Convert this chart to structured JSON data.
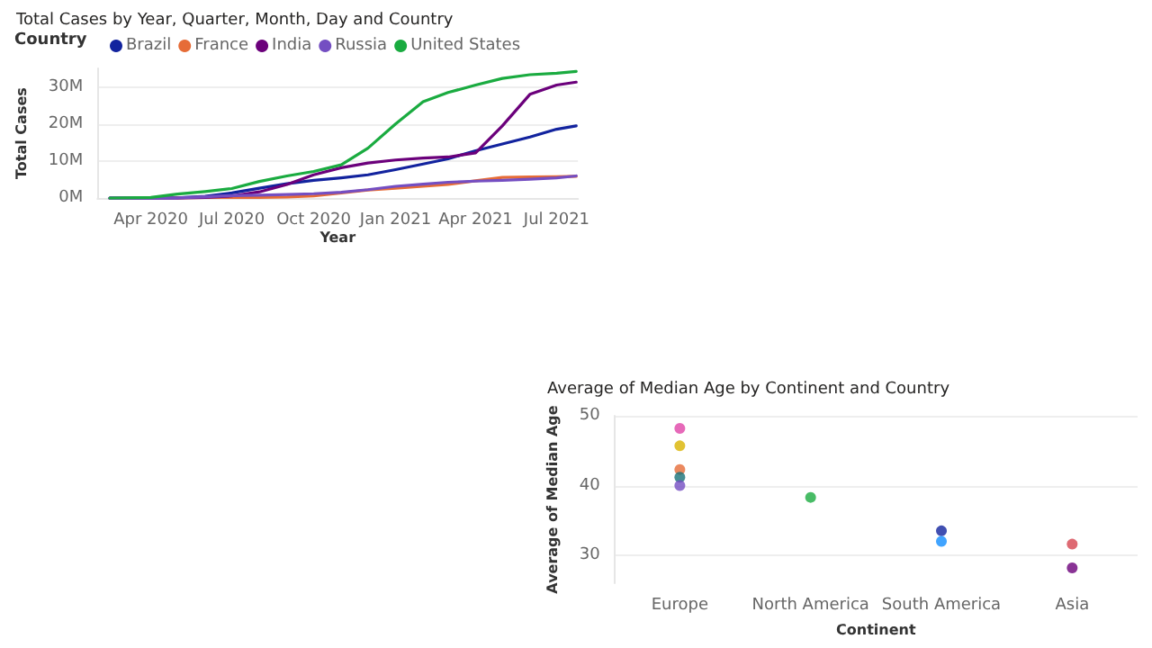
{
  "chart_data": [
    {
      "type": "line",
      "title": "Total Cases by Year, Quarter, Month, Day and Country",
      "xlabel": "Year",
      "ylabel": "Total Cases",
      "legend_title": "Country",
      "legend": "top left",
      "grid": "y",
      "marker": "none",
      "line_style": "solid",
      "x": [
        "2020-02-15",
        "2020-04-01",
        "2020-05-01",
        "2020-06-01",
        "2020-07-01",
        "2020-08-01",
        "2020-09-01",
        "2020-10-01",
        "2020-11-01",
        "2020-12-01",
        "2021-01-01",
        "2021-02-01",
        "2021-03-01",
        "2021-04-01",
        "2021-05-01",
        "2021-06-01",
        "2021-07-01",
        "2021-07-23"
      ],
      "xlim": [
        "2020-02-01",
        "2021-07-25"
      ],
      "xticks": [
        {
          "value": "2020-04-01",
          "label": "Apr 2020"
        },
        {
          "value": "2020-07-01",
          "label": "Jul 2020"
        },
        {
          "value": "2020-10-01",
          "label": "Oct 2020"
        },
        {
          "value": "2021-01-01",
          "label": "Jan 2021"
        },
        {
          "value": "2021-04-01",
          "label": "Apr 2021"
        },
        {
          "value": "2021-07-01",
          "label": "Jul 2021"
        }
      ],
      "ylim": [
        0,
        35
      ],
      "yticks": [
        {
          "value": 0,
          "label": "0M"
        },
        {
          "value": 10,
          "label": "10M"
        },
        {
          "value": 20,
          "label": "20M"
        },
        {
          "value": 30,
          "label": "30M"
        }
      ],
      "series": [
        {
          "name": "Brazil",
          "color": "#12239e",
          "values": [
            0,
            0,
            0.1,
            0.5,
            1.4,
            2.7,
            3.9,
            4.8,
            5.5,
            6.3,
            7.7,
            9.2,
            10.6,
            12.8,
            14.6,
            16.5,
            18.6,
            19.5
          ]
        },
        {
          "name": "France",
          "color": "#e66c37",
          "values": [
            null,
            null,
            0.1,
            0.2,
            0.2,
            0.2,
            0.3,
            0.6,
            1.4,
            2.2,
            2.7,
            3.2,
            3.7,
            4.7,
            5.6,
            5.7,
            5.8,
            5.9
          ]
        },
        {
          "name": "India",
          "color": "#6b007b",
          "values": [
            0,
            0,
            0,
            0.2,
            0.6,
            1.7,
            3.7,
            6.3,
            8.2,
            9.5,
            10.3,
            10.8,
            11.1,
            12.2,
            19.5,
            28,
            30.5,
            31.3
          ]
        },
        {
          "name": "Russia",
          "color": "#744ec2",
          "values": [
            0,
            0,
            0.1,
            0.4,
            0.7,
            0.8,
            1,
            1.2,
            1.6,
            2.3,
            3.2,
            3.8,
            4.3,
            4.6,
            4.8,
            5.1,
            5.5,
            6
          ]
        },
        {
          "name": "United States",
          "color": "#1aab40",
          "values": [
            0,
            0.2,
            1.1,
            1.8,
            2.6,
            4.5,
            6,
            7.2,
            9,
            13.5,
            20,
            26,
            28.5,
            30.5,
            32.3,
            33.3,
            33.7,
            34.2
          ]
        }
      ]
    },
    {
      "type": "scatter",
      "title": "Average of Median Age by Continent and Country",
      "xlabel": "Continent",
      "ylabel": "Average of Median Age",
      "grid": "y",
      "marker": "circle",
      "categories": [
        "Europe",
        "North America",
        "South America",
        "Asia"
      ],
      "ylim": [
        26,
        50
      ],
      "yticks": [
        30,
        40,
        50
      ],
      "series": [
        {
          "x": [
            "Europe",
            "Europe",
            "Europe",
            "Europe",
            "Europe",
            "North America",
            "South America",
            "South America",
            "Asia",
            "Asia"
          ],
          "values": [
            48.2,
            45.7,
            42.3,
            41.2,
            40,
            38.3,
            33.5,
            32,
            31.6,
            28.2
          ],
          "colors": [
            "#e044a7",
            "#d9b300",
            "#e66c37",
            "#197278",
            "#744ec2",
            "#1aab40",
            "#12239e",
            "#118dff",
            "#d64550",
            "#6b007b"
          ]
        }
      ]
    }
  ]
}
